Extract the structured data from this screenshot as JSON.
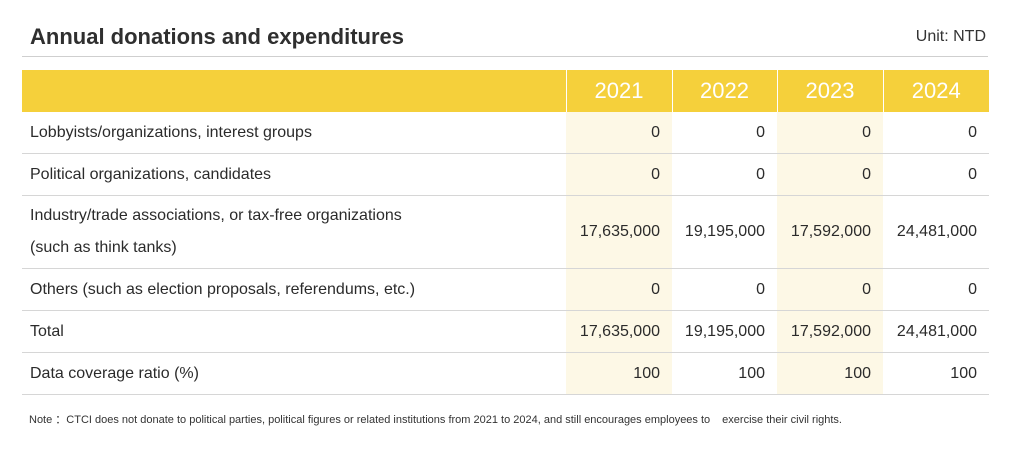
{
  "header": {
    "title": "Annual donations and expenditures",
    "unit": "Unit: NTD"
  },
  "table": {
    "years": [
      "2021",
      "2022",
      "2023",
      "2024"
    ],
    "rows": [
      {
        "label": "Lobbyists/organizations, interest groups",
        "values": [
          "0",
          "0",
          "0",
          "0"
        ]
      },
      {
        "label": "Political organizations, candidates",
        "values": [
          "0",
          "0",
          "0",
          "0"
        ]
      },
      {
        "label_line1": "Industry/trade associations, or tax-free organizations",
        "label_line2": "(such as think tanks)",
        "values": [
          "17,635,000",
          "19,195,000",
          "17,592,000",
          "24,481,000"
        ]
      },
      {
        "label": "Others (such as election proposals, referendums, etc.)",
        "values": [
          "0",
          "0",
          "0",
          "0"
        ]
      },
      {
        "label": "Total",
        "values": [
          "17,635,000",
          "19,195,000",
          "17,592,000",
          "24,481,000"
        ]
      },
      {
        "label": "Data coverage ratio (%)",
        "values": [
          "100",
          "100",
          "100",
          "100"
        ]
      }
    ]
  },
  "note": {
    "prefix": "Note ：",
    "text_part1": "CTCI does not donate to political parties, political figures or related institutions from 2021 to 2024, and still encourages employees to",
    "text_part2": "exercise their civil rights."
  },
  "colors": {
    "header_band": "#f5d03b",
    "highlight_column": "#fdf8e6",
    "header_text": "#ffffff"
  }
}
